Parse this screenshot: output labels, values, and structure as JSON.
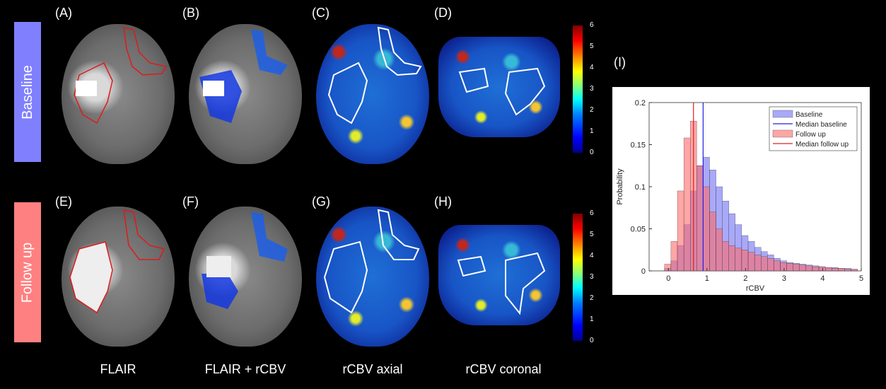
{
  "panels": {
    "A": "(A)",
    "B": "(B)",
    "C": "(C)",
    "D": "(D)",
    "E": "(E)",
    "F": "(F)",
    "G": "(G)",
    "H": "(H)",
    "I": "(I)"
  },
  "rows": {
    "baseline": "Baseline",
    "followup": "Follow up"
  },
  "columns": {
    "flair": "FLAIR",
    "flair_rcbv": "FLAIR + rCBV",
    "rcbv_axial": "rCBV axial",
    "rcbv_coronal": "rCBV coronal"
  },
  "colors": {
    "baseline_band": "#8080ff",
    "followup_band": "#ff8080",
    "contour_red": "#e01a1a"
  },
  "colorbar": {
    "ticks": [
      "0",
      "1",
      "2",
      "3",
      "4",
      "5",
      "6"
    ]
  },
  "chart_data": {
    "type": "bar",
    "xlabel": "rCBV",
    "ylabel": "Probability",
    "xlim": [
      -0.5,
      5
    ],
    "ylim": [
      0,
      0.2
    ],
    "xticks": [
      0,
      1,
      2,
      3,
      4,
      5
    ],
    "yticks": [
      0,
      0.05,
      0.1,
      0.15,
      0.2
    ],
    "ytick_labels": [
      "0",
      "0.05",
      "0.1",
      "0.15",
      "0.2"
    ],
    "bin_width": 0.1667,
    "bin_start": -0.1,
    "series": [
      {
        "name": "Baseline",
        "color": "#6f6ff5",
        "values": [
          0.003,
          0.012,
          0.03,
          0.055,
          0.095,
          0.125,
          0.135,
          0.12,
          0.1,
          0.083,
          0.068,
          0.055,
          0.042,
          0.035,
          0.028,
          0.023,
          0.019,
          0.015,
          0.012,
          0.01,
          0.009,
          0.008,
          0.007,
          0.006,
          0.005,
          0.004,
          0.004,
          0.003,
          0.003,
          0.002
        ]
      },
      {
        "name": "Follow up",
        "color": "#ff6a6a",
        "values": [
          0.008,
          0.035,
          0.095,
          0.158,
          0.178,
          0.125,
          0.1,
          0.07,
          0.05,
          0.035,
          0.03,
          0.027,
          0.025,
          0.022,
          0.019,
          0.017,
          0.015,
          0.012,
          0.01,
          0.009,
          0.008,
          0.007,
          0.006,
          0.005,
          0.005,
          0.004,
          0.003,
          0.003,
          0.002,
          0.002
        ]
      }
    ],
    "medians": [
      {
        "name": "Median baseline",
        "x": 0.9,
        "color": "#2020e0"
      },
      {
        "name": "Median follow up",
        "x": 0.65,
        "color": "#e02020"
      }
    ],
    "legend": {
      "position": "top-right"
    }
  }
}
